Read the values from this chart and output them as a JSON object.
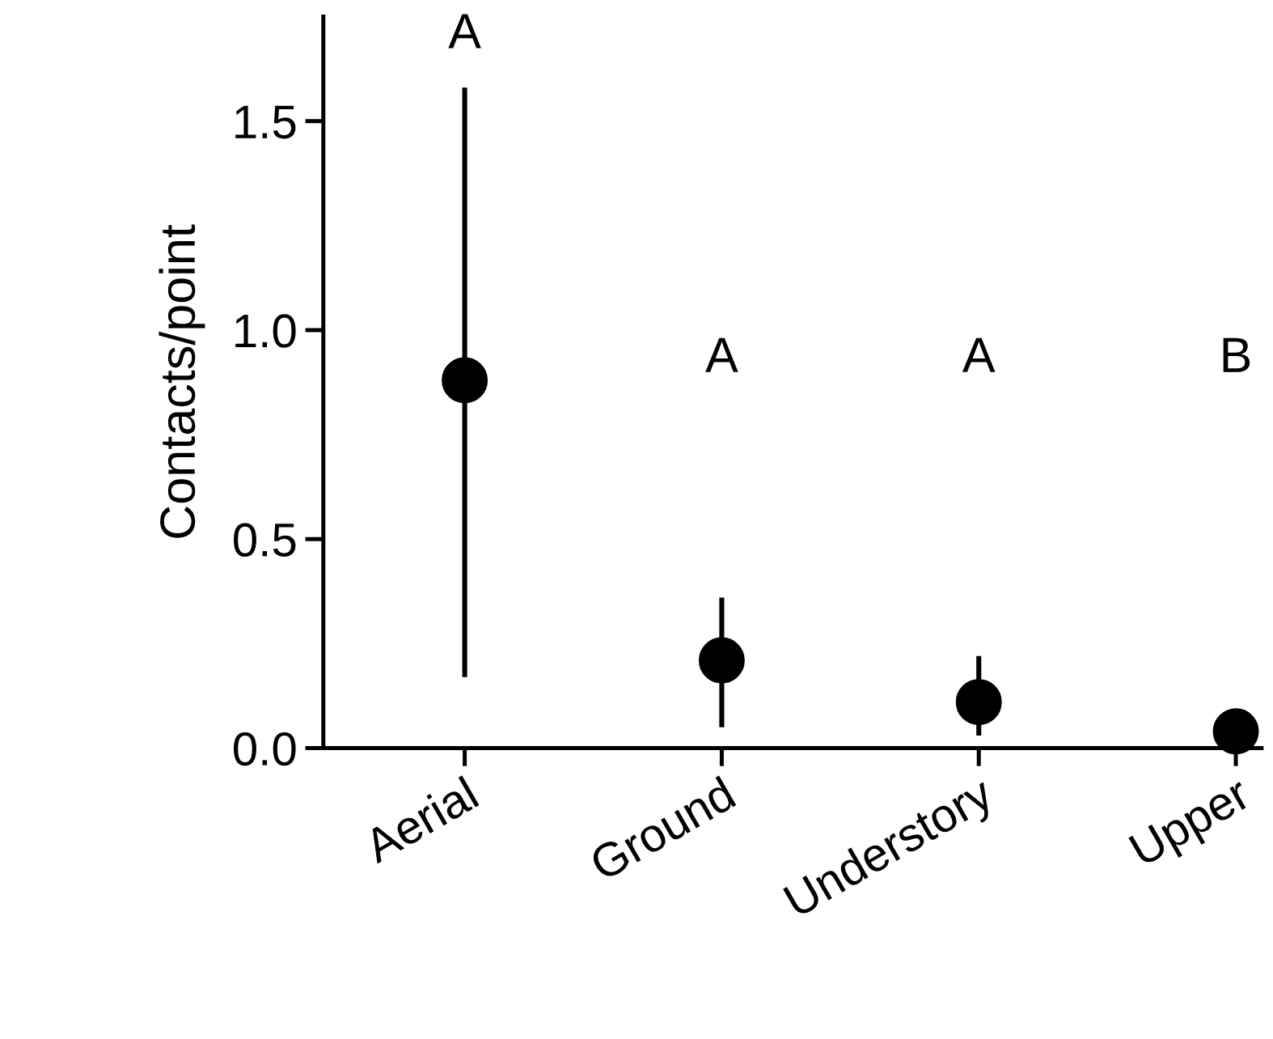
{
  "chart_data": {
    "type": "scatter",
    "ylabel": "Contacts/point",
    "categories": [
      "Aerial",
      "Ground",
      "Understory",
      "Upper"
    ],
    "values": [
      0.88,
      0.21,
      0.11,
      0.04
    ],
    "errors": [
      [
        0.17,
        1.58
      ],
      [
        0.05,
        0.36
      ],
      [
        0.03,
        0.22
      ],
      null
    ],
    "color": "#000000",
    "marker": "circle",
    "ylim": [
      0,
      1.75
    ],
    "yticks": [
      {
        "value": 0,
        "label": "0.0"
      },
      {
        "value": 0.5,
        "label": "0.5"
      },
      {
        "value": 1,
        "label": "1.0"
      },
      {
        "value": 1.5,
        "label": "1.5"
      }
    ],
    "grid": false,
    "legend": false,
    "annotations": [
      "A",
      "A",
      "A",
      "B"
    ]
  }
}
